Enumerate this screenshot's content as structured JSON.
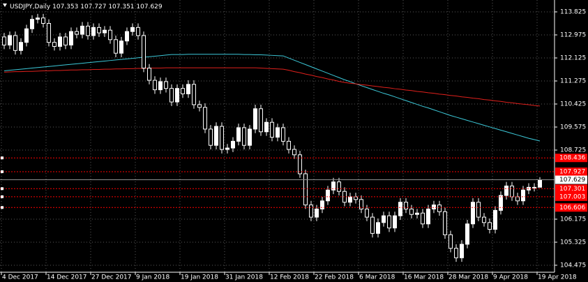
{
  "chart_data": {
    "type": "candlestick",
    "symbol": "USDJPY,Daily",
    "categories": [
      "4 Dec 2017",
      null,
      null,
      null,
      null,
      null,
      null,
      null,
      "14 Dec 2017",
      null,
      null,
      null,
      null,
      null,
      null,
      null,
      "27 Dec 2017",
      null,
      null,
      null,
      null,
      null,
      null,
      null,
      "9 Jan 2018",
      null,
      null,
      null,
      null,
      null,
      null,
      null,
      "19 Jan 2018",
      null,
      null,
      null,
      null,
      null,
      null,
      null,
      "31 Jan 2018",
      null,
      null,
      null,
      null,
      null,
      null,
      null,
      "12 Feb 2018",
      null,
      null,
      null,
      null,
      null,
      null,
      null,
      "22 Feb 2018",
      null,
      null,
      null,
      null,
      null,
      null,
      null,
      "6 Mar 2018",
      null,
      null,
      null,
      null,
      null,
      null,
      null,
      "16 Mar 2018",
      null,
      null,
      null,
      null,
      null,
      null,
      null,
      "28 Mar 2018",
      null,
      null,
      null,
      null,
      null,
      null,
      null,
      "9 Apr 2018",
      null,
      null,
      null,
      null,
      null,
      null,
      null,
      "19 Apr 2018"
    ],
    "open": [
      112.9,
      112.6,
      112.95,
      112.4,
      112.7,
      113.2,
      113.55,
      113.6,
      113.4,
      112.7,
      112.55,
      112.9,
      112.6,
      113.1,
      113.0,
      113.3,
      112.95,
      113.25,
      113.05,
      113.15,
      112.8,
      112.3,
      112.75,
      113.1,
      113.25,
      112.95,
      111.75,
      111.3,
      110.95,
      111.25,
      111.0,
      110.5,
      111.0,
      110.8,
      111.15,
      110.4,
      110.3,
      109.5,
      108.9,
      109.6,
      108.75,
      108.8,
      109.05,
      109.55,
      108.9,
      109.5,
      110.25,
      109.4,
      109.75,
      109.2,
      109.55,
      109.05,
      108.75,
      108.55,
      107.85,
      106.7,
      106.25,
      106.55,
      106.85,
      107.25,
      107.55,
      107.2,
      106.8,
      107.0,
      106.9,
      106.55,
      106.25,
      105.65,
      106.05,
      106.3,
      105.85,
      106.3,
      106.8,
      106.55,
      106.35,
      106.4,
      106.0,
      106.55,
      106.7,
      106.45,
      105.6,
      105.1,
      104.75,
      105.25,
      106.0,
      106.8,
      106.25,
      106.05,
      105.8,
      106.5,
      107.05,
      107.4,
      107.0,
      106.85,
      107.25,
      107.35,
      107.353
    ],
    "high": [
      113.05,
      113.1,
      113.1,
      112.85,
      113.35,
      113.7,
      113.75,
      113.75,
      113.55,
      112.85,
      113.05,
      113.05,
      113.25,
      113.25,
      113.45,
      113.45,
      113.4,
      113.4,
      113.3,
      113.3,
      112.95,
      112.9,
      113.25,
      113.4,
      113.4,
      113.1,
      111.9,
      111.45,
      111.4,
      111.4,
      111.15,
      111.15,
      111.15,
      111.3,
      111.3,
      110.55,
      110.45,
      109.65,
      109.75,
      109.75,
      108.95,
      109.2,
      109.7,
      109.7,
      109.65,
      110.4,
      110.4,
      109.9,
      109.9,
      109.7,
      109.7,
      109.2,
      108.9,
      108.7,
      108.0,
      106.85,
      106.7,
      107.0,
      107.4,
      107.7,
      107.7,
      107.35,
      107.15,
      107.15,
      107.05,
      106.7,
      106.4,
      106.2,
      106.45,
      106.45,
      106.45,
      106.95,
      106.95,
      106.7,
      106.55,
      106.55,
      106.7,
      106.85,
      106.85,
      106.6,
      105.75,
      105.25,
      105.4,
      106.15,
      106.95,
      106.95,
      106.4,
      106.2,
      106.65,
      107.2,
      107.55,
      107.55,
      107.15,
      107.4,
      107.5,
      107.5,
      107.727
    ],
    "low": [
      112.45,
      112.45,
      112.25,
      112.25,
      112.55,
      113.05,
      113.4,
      113.25,
      112.55,
      112.4,
      112.4,
      112.45,
      112.45,
      112.85,
      112.85,
      112.8,
      112.8,
      112.9,
      112.9,
      112.65,
      112.15,
      112.15,
      112.6,
      112.95,
      112.8,
      111.6,
      111.15,
      110.8,
      110.8,
      110.85,
      110.35,
      110.35,
      110.65,
      110.65,
      110.25,
      110.15,
      109.35,
      108.75,
      108.75,
      108.6,
      108.6,
      108.65,
      108.9,
      108.75,
      108.75,
      109.35,
      109.25,
      109.25,
      109.05,
      109.05,
      108.9,
      108.6,
      108.4,
      107.7,
      106.55,
      106.1,
      106.1,
      106.4,
      106.7,
      107.1,
      107.05,
      106.65,
      106.65,
      106.75,
      106.4,
      106.1,
      105.5,
      105.5,
      105.9,
      105.7,
      105.7,
      106.15,
      106.4,
      106.2,
      106.2,
      105.85,
      105.85,
      106.4,
      106.3,
      105.45,
      104.95,
      104.6,
      104.6,
      105.1,
      105.85,
      106.1,
      105.9,
      105.65,
      105.65,
      106.35,
      106.9,
      106.85,
      106.7,
      106.7,
      107.1,
      107.2,
      107.351
    ],
    "close": [
      112.6,
      112.95,
      112.4,
      112.7,
      113.2,
      113.55,
      113.6,
      113.4,
      112.7,
      112.55,
      112.9,
      112.6,
      113.1,
      113.0,
      113.3,
      112.95,
      113.25,
      113.05,
      113.15,
      112.8,
      112.3,
      112.75,
      113.1,
      113.25,
      112.95,
      111.75,
      111.3,
      110.95,
      111.25,
      111.0,
      110.5,
      111.0,
      110.8,
      111.15,
      110.4,
      110.3,
      109.5,
      108.9,
      109.6,
      108.75,
      108.8,
      109.05,
      109.55,
      108.9,
      109.5,
      110.25,
      109.4,
      109.75,
      109.2,
      109.55,
      109.05,
      108.75,
      108.55,
      107.85,
      106.7,
      106.25,
      106.55,
      106.85,
      107.25,
      107.55,
      107.2,
      106.8,
      107.0,
      106.9,
      106.55,
      106.25,
      105.65,
      106.05,
      106.3,
      105.85,
      106.3,
      106.8,
      106.55,
      106.35,
      106.4,
      106.0,
      106.55,
      106.7,
      106.45,
      105.6,
      105.1,
      104.75,
      105.25,
      106.0,
      106.8,
      106.25,
      106.05,
      105.8,
      106.5,
      107.05,
      107.4,
      107.0,
      106.85,
      107.25,
      107.35,
      107.35,
      107.629
    ],
    "moving_averages": [
      {
        "color": "#3cc8d8",
        "values": [
          111.65,
          111.67,
          111.69,
          111.71,
          111.73,
          111.75,
          111.77,
          111.79,
          111.81,
          111.83,
          111.85,
          111.87,
          111.89,
          111.91,
          111.93,
          111.95,
          111.97,
          111.99,
          112.01,
          112.03,
          112.05,
          112.07,
          112.09,
          112.11,
          112.13,
          112.15,
          112.17,
          112.19,
          112.21,
          112.23,
          112.25,
          112.25,
          112.25,
          112.26,
          112.26,
          112.26,
          112.26,
          112.26,
          112.26,
          112.26,
          112.26,
          112.26,
          112.26,
          112.25,
          112.25,
          112.24,
          112.24,
          112.23,
          112.22,
          112.21,
          112.2,
          112.12,
          112.04,
          111.96,
          111.88,
          111.8,
          111.72,
          111.64,
          111.56,
          111.48,
          111.4,
          111.32,
          111.25,
          111.17,
          111.1,
          111.03,
          110.96,
          110.89,
          110.82,
          110.76,
          110.69,
          110.62,
          110.55,
          110.48,
          110.41,
          110.34,
          110.28,
          110.21,
          110.14,
          110.07,
          110.0,
          109.94,
          109.88,
          109.82,
          109.76,
          109.7,
          109.64,
          109.58,
          109.52,
          109.46,
          109.4,
          109.34,
          109.28,
          109.22,
          109.16,
          109.11,
          109.06
        ]
      },
      {
        "color": "#e0201c",
        "values": [
          111.6,
          111.61,
          111.62,
          111.62,
          111.63,
          111.63,
          111.64,
          111.65,
          111.65,
          111.66,
          111.66,
          111.67,
          111.68,
          111.68,
          111.69,
          111.69,
          111.7,
          111.7,
          111.71,
          111.71,
          111.72,
          111.72,
          111.73,
          111.73,
          111.74,
          111.74,
          111.75,
          111.75,
          111.75,
          111.76,
          111.76,
          111.76,
          111.76,
          111.76,
          111.76,
          111.76,
          111.76,
          111.76,
          111.76,
          111.76,
          111.76,
          111.76,
          111.76,
          111.76,
          111.76,
          111.76,
          111.75,
          111.74,
          111.73,
          111.72,
          111.71,
          111.67,
          111.62,
          111.58,
          111.53,
          111.49,
          111.44,
          111.4,
          111.35,
          111.31,
          111.26,
          111.22,
          111.19,
          111.17,
          111.14,
          111.12,
          111.09,
          111.07,
          111.04,
          111.02,
          110.99,
          110.97,
          110.94,
          110.92,
          110.89,
          110.87,
          110.84,
          110.82,
          110.79,
          110.77,
          110.74,
          110.72,
          110.69,
          110.67,
          110.64,
          110.62,
          110.59,
          110.57,
          110.54,
          110.52,
          110.49,
          110.47,
          110.44,
          110.42,
          110.4,
          110.37,
          110.35
        ]
      }
    ],
    "levels": [
      {
        "value": 108.436,
        "color": "#ff0000"
      },
      {
        "value": 107.927,
        "color": "#ff0000"
      },
      {
        "value": 107.301,
        "color": "#ff0000"
      },
      {
        "value": 107.003,
        "color": "#ff0000"
      },
      {
        "value": 106.606,
        "color": "#ff0000"
      }
    ],
    "ylim": [
      104.217,
      114.263
    ],
    "yticks": [
      113.825,
      112.975,
      112.125,
      111.275,
      110.425,
      109.575,
      108.725,
      106.175,
      105.325,
      104.475
    ],
    "grid": true
  }
}
